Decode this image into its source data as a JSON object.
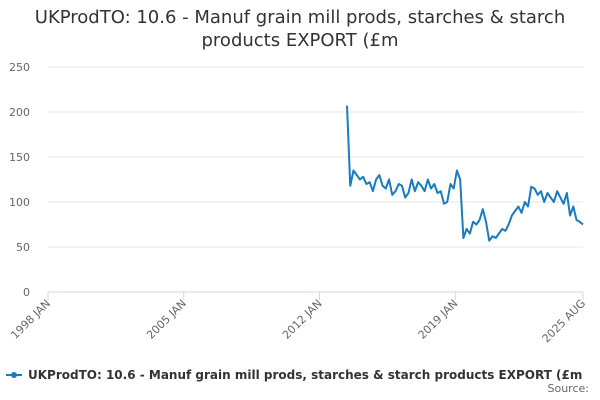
{
  "chart_data": {
    "type": "line",
    "title": "UKProdTO: 10.6 - Manuf grain mill prods, starches & starch products EXPORT (£m",
    "x": [
      "2013 JUN",
      "2013 AUG",
      "2013 OCT",
      "2013 DEC",
      "2014 FEB",
      "2014 APR",
      "2014 JUN",
      "2014 AUG",
      "2014 OCT",
      "2014 DEC",
      "2015 FEB",
      "2015 APR",
      "2015 JUN",
      "2015 AUG",
      "2015 OCT",
      "2015 DEC",
      "2016 FEB",
      "2016 APR",
      "2016 JUN",
      "2016 AUG",
      "2016 OCT",
      "2016 DEC",
      "2017 FEB",
      "2017 APR",
      "2017 JUN",
      "2017 AUG",
      "2017 OCT",
      "2017 DEC",
      "2018 FEB",
      "2018 APR",
      "2018 JUN",
      "2018 AUG",
      "2018 OCT",
      "2018 DEC",
      "2019 FEB",
      "2019 APR",
      "2019 JUN",
      "2019 AUG",
      "2019 OCT",
      "2019 DEC",
      "2020 FEB",
      "2020 APR",
      "2020 JUN",
      "2020 AUG",
      "2020 OCT",
      "2020 DEC",
      "2021 FEB",
      "2021 APR",
      "2021 JUN",
      "2021 AUG",
      "2021 OCT",
      "2021 DEC",
      "2022 FEB",
      "2022 APR",
      "2022 JUN",
      "2022 AUG",
      "2022 OCT",
      "2022 DEC",
      "2023 FEB",
      "2023 APR",
      "2023 JUN",
      "2023 AUG",
      "2023 OCT",
      "2023 DEC",
      "2024 FEB",
      "2024 APR",
      "2024 JUN",
      "2024 AUG",
      "2024 OCT",
      "2024 DEC",
      "2025 FEB",
      "2025 APR",
      "2025 JUN",
      "2025 AUG"
    ],
    "series": [
      {
        "name": "UKProdTO: 10.6 - Manuf grain mill prods, starches & starch products EXPORT (£m",
        "color": "#1a7bbf",
        "values": [
          207,
          118,
          135,
          130,
          125,
          128,
          120,
          122,
          112,
          125,
          130,
          118,
          115,
          125,
          108,
          112,
          120,
          118,
          105,
          110,
          125,
          112,
          122,
          118,
          112,
          125,
          115,
          120,
          110,
          112,
          98,
          100,
          120,
          115,
          135,
          125,
          60,
          70,
          65,
          78,
          75,
          80,
          92,
          78,
          57,
          62,
          60,
          65,
          70,
          68,
          75,
          85,
          90,
          95,
          88,
          100,
          95,
          117,
          115,
          108,
          112,
          100,
          110,
          105,
          100,
          112,
          105,
          98,
          110,
          85,
          95,
          80,
          78,
          75
        ]
      }
    ],
    "xlim": [
      "1998 JAN",
      "2025 AUG"
    ],
    "xticks": [
      "1998 JAN",
      "2005 JAN",
      "2012 JAN",
      "2019 JAN",
      "2025 AUG"
    ],
    "ylim": [
      0,
      250
    ],
    "yticks": [
      0,
      50,
      100,
      150,
      200,
      250
    ],
    "grid": true,
    "source": "Source:"
  }
}
